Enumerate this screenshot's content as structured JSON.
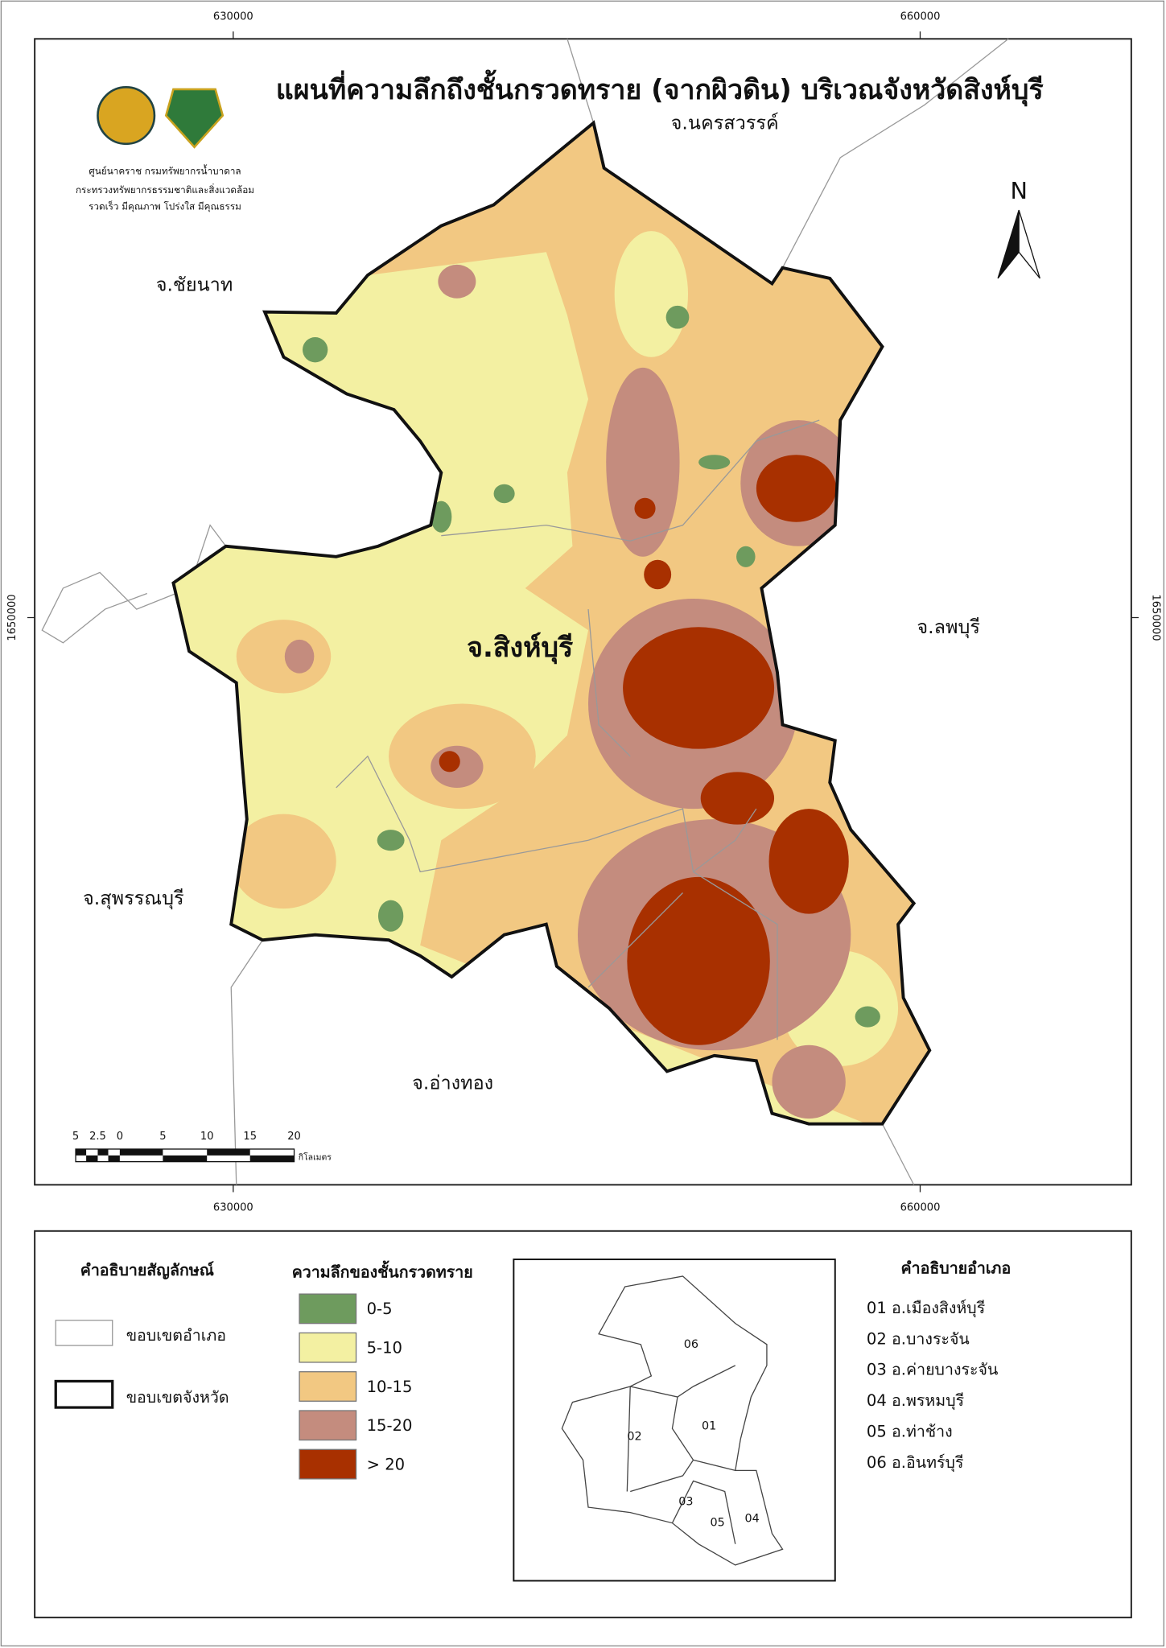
{
  "title": "แผนที่ความลึกถึงชั้นกรวดทราย (จากผิวดิน) บริเวณจังหวัดสิงห์บุรี",
  "organization": [
    "ศูนย์นาคราช กรมทรัพยากรน้ำบาดาล",
    "กระทรวงทรัพยากรธรรมชาติและสิ่งแวดล้อม",
    "รวดเร็ว มีคุณภาพ โปร่งใส มีคุณธรรม"
  ],
  "coordinates": {
    "top": [
      "630000",
      "660000"
    ],
    "bottom": [
      "630000",
      "660000"
    ],
    "left": "1650000",
    "right": "1650000"
  },
  "north": "N",
  "provinces": {
    "center": "จ.สิงห์บุรี",
    "north": "จ.นครสวรรค์",
    "northwest": "จ.ชัยนาท",
    "east": "จ.ลพบุรี",
    "west": "จ.สุพรรณบุรี",
    "south": "จ.อ่างทอง"
  },
  "scale_bar": {
    "labels": [
      "5",
      "2.5",
      "0",
      "5",
      "10",
      "15",
      "20"
    ],
    "unit": "กิโลเมตร"
  },
  "legend": {
    "symbols_title": "คำอธิบายสัญลักษณ์",
    "symbols": [
      "ขอบเขตอำเภอ",
      "ขอบเขตจังหวัด"
    ],
    "depth_title": "ความลึกของชั้นกรวดทราย",
    "depth_classes": [
      {
        "label": "0-5",
        "color": "#6e9b5e"
      },
      {
        "label": "5-10",
        "color": "#f3f0a2"
      },
      {
        "label": "10-15",
        "color": "#f2c882"
      },
      {
        "label": "15-20",
        "color": "#c48c7e"
      },
      {
        "label": "> 20",
        "color": "#a83000"
      }
    ]
  },
  "inset": {
    "labels": [
      "06",
      "02",
      "01",
      "03",
      "05",
      "04"
    ]
  },
  "districts": {
    "title": "คำอธิบายอำเภอ",
    "items": [
      "01 อ.เมืองสิงห์บุรี",
      "02 อ.บางระจัน",
      "03 อ.ค่ายบางระจัน",
      "04 อ.พรหมบุรี",
      "05 อ.ท่าช้าง",
      "06 อ.อินทร์บุรี"
    ]
  }
}
